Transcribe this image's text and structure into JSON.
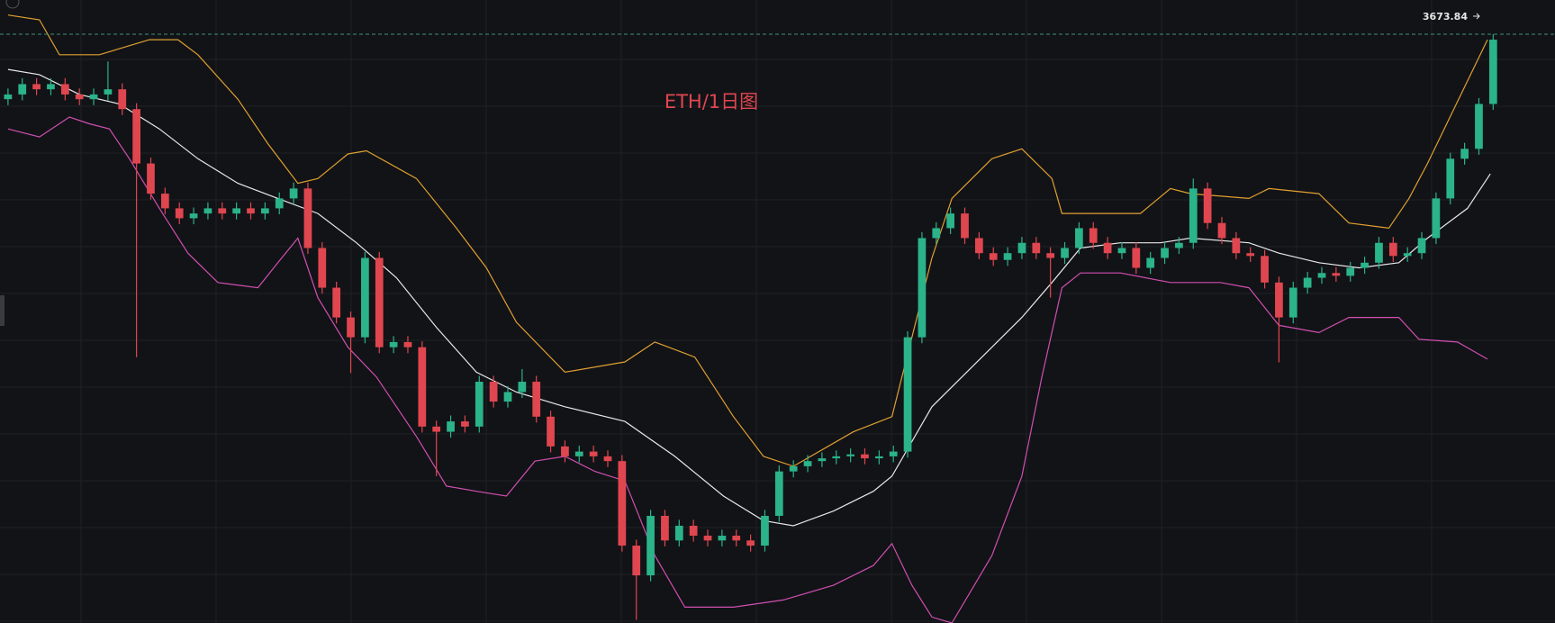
{
  "chart_data": {
    "type": "candlestick",
    "title": "ETH/1日图",
    "up_color": "#2bb38a",
    "down_color": "#e0464f",
    "xlim": [
      -0.56,
      108.33
    ],
    "ylim": [
      2190,
      3760
    ],
    "price_line": {
      "value": 3673.84,
      "color": "#3f8f7a"
    },
    "open": [
      3510,
      3522,
      3548,
      3535,
      3548,
      3522,
      3510,
      3522,
      3535,
      3485,
      3348,
      3272,
      3235,
      3210,
      3222,
      3235,
      3222,
      3235,
      3222,
      3235,
      3260,
      3285,
      3135,
      3035,
      2960,
      2910,
      3110,
      2885,
      2898,
      2885,
      2685,
      2672,
      2698,
      2685,
      2798,
      2748,
      2772,
      2798,
      2710,
      2635,
      2610,
      2622,
      2610,
      2598,
      2385,
      2310,
      2460,
      2398,
      2435,
      2410,
      2398,
      2410,
      2398,
      2385,
      2460,
      2572,
      2585,
      2598,
      2605,
      2610,
      2615,
      2605,
      2610,
      2622,
      2910,
      3160,
      3185,
      3222,
      3160,
      3122,
      3105,
      3122,
      3148,
      3122,
      3110,
      3135,
      3185,
      3148,
      3122,
      3135,
      3085,
      3110,
      3135,
      3148,
      3285,
      3198,
      3160,
      3122,
      3115,
      3048,
      2960,
      3035,
      3060,
      3072,
      3065,
      3085,
      3098,
      3148,
      3115,
      3122,
      3160,
      3260,
      3360,
      3385,
      3498
    ],
    "high": [
      3537,
      3563,
      3563,
      3563,
      3563,
      3537,
      3537,
      3605,
      3550,
      3500,
      3363,
      3287,
      3250,
      3237,
      3250,
      3250,
      3250,
      3250,
      3250,
      3275,
      3300,
      3300,
      3150,
      3050,
      2975,
      3125,
      3125,
      2913,
      2913,
      2900,
      2700,
      2713,
      2713,
      2813,
      2813,
      2787,
      2830,
      2813,
      2725,
      2650,
      2637,
      2637,
      2625,
      2613,
      2400,
      2475,
      2475,
      2450,
      2450,
      2425,
      2425,
      2425,
      2413,
      2475,
      2587,
      2600,
      2613,
      2620,
      2625,
      2630,
      2630,
      2625,
      2637,
      2925,
      3175,
      3200,
      3237,
      3237,
      3175,
      3137,
      3137,
      3163,
      3163,
      3137,
      3150,
      3200,
      3200,
      3163,
      3150,
      3150,
      3125,
      3150,
      3163,
      3310,
      3300,
      3213,
      3175,
      3137,
      3130,
      3063,
      3050,
      3075,
      3087,
      3087,
      3100,
      3113,
      3163,
      3163,
      3137,
      3175,
      3275,
      3375,
      3400,
      3513,
      3673.84
    ],
    "low": [
      3495,
      3507,
      3520,
      3520,
      3507,
      3495,
      3495,
      3507,
      3470,
      2860,
      3257,
      3220,
      3195,
      3195,
      3207,
      3207,
      3207,
      3207,
      3207,
      3220,
      3245,
      3120,
      3020,
      2945,
      2820,
      2895,
      2870,
      2870,
      2870,
      2670,
      2560,
      2657,
      2670,
      2670,
      2733,
      2733,
      2757,
      2695,
      2620,
      2595,
      2595,
      2595,
      2583,
      2370,
      2198,
      2295,
      2383,
      2383,
      2395,
      2383,
      2383,
      2383,
      2370,
      2370,
      2445,
      2557,
      2570,
      2583,
      2590,
      2595,
      2590,
      2590,
      2595,
      2607,
      2895,
      3145,
      3170,
      3145,
      3107,
      3090,
      3090,
      3107,
      3107,
      3010,
      3095,
      3120,
      3133,
      3107,
      3107,
      3070,
      3070,
      3095,
      3120,
      3133,
      3183,
      3145,
      3107,
      3100,
      3033,
      2847,
      2945,
      3020,
      3045,
      3050,
      3050,
      3070,
      3083,
      3100,
      3100,
      3107,
      3145,
      3245,
      3345,
      3370,
      3483
    ],
    "close": [
      3522,
      3548,
      3535,
      3548,
      3522,
      3510,
      3522,
      3535,
      3485,
      3348,
      3272,
      3235,
      3210,
      3222,
      3235,
      3222,
      3235,
      3222,
      3235,
      3260,
      3285,
      3135,
      3035,
      2960,
      2910,
      3110,
      2885,
      2898,
      2885,
      2685,
      2672,
      2698,
      2685,
      2798,
      2748,
      2772,
      2798,
      2710,
      2635,
      2610,
      2622,
      2610,
      2598,
      2385,
      2310,
      2460,
      2398,
      2435,
      2410,
      2398,
      2410,
      2398,
      2385,
      2460,
      2572,
      2585,
      2598,
      2605,
      2610,
      2615,
      2605,
      2610,
      2622,
      2910,
      3160,
      3185,
      3222,
      3160,
      3122,
      3105,
      3122,
      3148,
      3122,
      3110,
      3135,
      3185,
      3148,
      3122,
      3135,
      3085,
      3110,
      3135,
      3148,
      3285,
      3198,
      3160,
      3122,
      3115,
      3048,
      2960,
      3035,
      3060,
      3072,
      3065,
      3085,
      3098,
      3148,
      3115,
      3122,
      3160,
      3260,
      3360,
      3385,
      3498,
      3660
    ],
    "bands": [
      {
        "color": "#e0a030",
        "x": [
          0,
          2.2,
          3.6,
          6.4,
          9.9,
          11.9,
          13.3,
          16.1,
          18.2,
          20.3,
          21.7,
          23.8,
          25.1,
          28.6,
          31.4,
          33.5,
          35.6,
          39,
          43.2,
          45.3,
          48.1,
          50.8,
          52.9,
          55,
          59.2,
          61.9,
          62.6,
          64.7,
          66.1,
          68.9,
          71,
          73.1,
          73.8,
          75.8,
          79.3,
          81.4,
          82.8,
          86.9,
          88.3,
          91.8,
          93.9,
          96.7,
          98.1,
          99.4,
          103.6
        ],
        "values": [
          3722,
          3710,
          3622,
          3622,
          3660,
          3660,
          3622,
          3510,
          3398,
          3298,
          3310,
          3372,
          3380,
          3310,
          3185,
          3085,
          2948,
          2822,
          2848,
          2898,
          2860,
          2710,
          2610,
          2585,
          2672,
          2710,
          2810,
          3110,
          3260,
          3360,
          3385,
          3310,
          3222,
          3222,
          3222,
          3285,
          3272,
          3260,
          3285,
          3272,
          3198,
          3185,
          3260,
          3348,
          3660
        ]
      },
      {
        "color": "#e8e8e8",
        "x": [
          0,
          2.2,
          5,
          7.8,
          10.6,
          13.3,
          16.1,
          18.9,
          21.7,
          24.4,
          27.2,
          30,
          32.8,
          35.6,
          39,
          43.2,
          46.7,
          50.1,
          52.9,
          55,
          57.8,
          60.6,
          61.9,
          64.7,
          67.5,
          71,
          73.1,
          75.1,
          77.9,
          80.7,
          82.8,
          86.9,
          89,
          91.8,
          94.6,
          97.4,
          99.4,
          102.2,
          103.8
        ],
        "values": [
          3585,
          3572,
          3522,
          3498,
          3435,
          3360,
          3298,
          3260,
          3222,
          3148,
          3060,
          2935,
          2822,
          2772,
          2735,
          2698,
          2610,
          2510,
          2448,
          2435,
          2472,
          2522,
          2560,
          2735,
          2835,
          2960,
          3048,
          3135,
          3148,
          3148,
          3160,
          3148,
          3122,
          3098,
          3085,
          3098,
          3160,
          3235,
          3322
        ]
      },
      {
        "color": "#d04fb0",
        "x": [
          0,
          2.2,
          4.3,
          5.7,
          7.1,
          8.5,
          10.6,
          12.6,
          14.7,
          17.5,
          18.9,
          20.3,
          21.7,
          23.8,
          25.8,
          28.6,
          30.7,
          32.8,
          34.9,
          36.9,
          39,
          41.1,
          43.2,
          45.3,
          47.4,
          50.8,
          54.3,
          57.8,
          60.6,
          61.9,
          63.3,
          64.7,
          66.1,
          68.9,
          71,
          72.4,
          73.8,
          75.1,
          77.9,
          81.4,
          84.9,
          86.9,
          89,
          91.8,
          93.9,
          97.4,
          98.8,
          101.5,
          103.6
        ],
        "values": [
          3435,
          3415,
          3465,
          3448,
          3435,
          3360,
          3235,
          3122,
          3048,
          3035,
          3098,
          3160,
          3010,
          2885,
          2810,
          2660,
          2535,
          2522,
          2510,
          2598,
          2610,
          2572,
          2548,
          2360,
          2230,
          2230,
          2248,
          2285,
          2335,
          2390,
          2285,
          2205,
          2190,
          2360,
          2560,
          2810,
          3035,
          3072,
          3072,
          3048,
          3048,
          3035,
          2940,
          2922,
          2960,
          2960,
          2905,
          2898,
          2855
        ]
      }
    ]
  }
}
